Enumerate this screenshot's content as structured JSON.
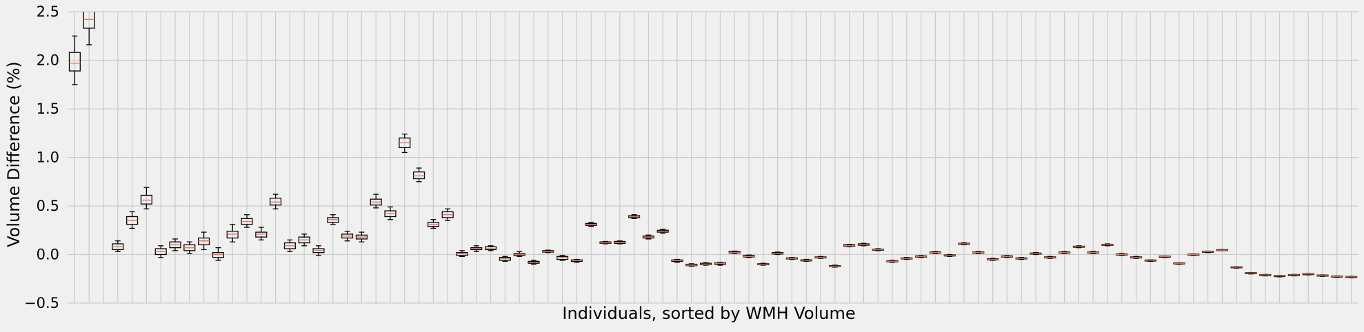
{
  "chart_data": {
    "type": "boxplot",
    "title": "",
    "xlabel": "Individuals, sorted by WMH Volume",
    "ylabel": "Volume Difference (%)",
    "ylim": [
      -0.5,
      2.5
    ],
    "yticks": [
      -0.5,
      0.0,
      0.5,
      1.0,
      1.5,
      2.0,
      2.5
    ],
    "ytick_labels": [
      "−0.5",
      "0.0",
      "0.5",
      "1.0",
      "1.5",
      "2.0",
      "2.5"
    ],
    "xtick_labels_shown": false,
    "grid": true,
    "median_color": "#e8735a",
    "box_color": "#000000",
    "grid_color": "#cbcbcb",
    "background_color": "#f0f0f0",
    "n_individuals": 90,
    "boxes": [
      {
        "individual": 1,
        "whisker_low": 1.75,
        "q1": 1.89,
        "median": 1.97,
        "q3": 2.08,
        "whisker_high": 2.25
      },
      {
        "individual": 2,
        "whisker_low": 2.16,
        "q1": 2.33,
        "median": 2.42,
        "q3": 2.55,
        "whisker_high": 2.72
      },
      {
        "individual": 3,
        "whisker_low": null,
        "q1": null,
        "median": null,
        "q3": null,
        "whisker_high": null
      },
      {
        "individual": 4,
        "whisker_low": 0.03,
        "q1": 0.05,
        "median": 0.08,
        "q3": 0.11,
        "whisker_high": 0.14
      },
      {
        "individual": 5,
        "whisker_low": 0.27,
        "q1": 0.31,
        "median": 0.35,
        "q3": 0.39,
        "whisker_high": 0.44
      },
      {
        "individual": 6,
        "whisker_low": 0.47,
        "q1": 0.52,
        "median": 0.56,
        "q3": 0.61,
        "whisker_high": 0.69
      },
      {
        "individual": 7,
        "whisker_low": -0.03,
        "q1": 0.0,
        "median": 0.03,
        "q3": 0.06,
        "whisker_high": 0.09
      },
      {
        "individual": 8,
        "whisker_low": 0.04,
        "q1": 0.07,
        "median": 0.1,
        "q3": 0.13,
        "whisker_high": 0.16
      },
      {
        "individual": 9,
        "whisker_low": 0.01,
        "q1": 0.04,
        "median": 0.07,
        "q3": 0.1,
        "whisker_high": 0.13
      },
      {
        "individual": 10,
        "whisker_low": 0.05,
        "q1": 0.1,
        "median": 0.14,
        "q3": 0.17,
        "whisker_high": 0.23
      },
      {
        "individual": 11,
        "whisker_low": -0.06,
        "q1": -0.03,
        "median": 0.0,
        "q3": 0.02,
        "whisker_high": 0.07
      },
      {
        "individual": 12,
        "whisker_low": 0.13,
        "q1": 0.17,
        "median": 0.21,
        "q3": 0.24,
        "whisker_high": 0.31
      },
      {
        "individual": 13,
        "whisker_low": 0.28,
        "q1": 0.31,
        "median": 0.34,
        "q3": 0.37,
        "whisker_high": 0.41
      },
      {
        "individual": 14,
        "whisker_low": 0.15,
        "q1": 0.18,
        "median": 0.21,
        "q3": 0.23,
        "whisker_high": 0.28
      },
      {
        "individual": 15,
        "whisker_low": 0.47,
        "q1": 0.51,
        "median": 0.54,
        "q3": 0.58,
        "whisker_high": 0.62
      },
      {
        "individual": 16,
        "whisker_low": 0.03,
        "q1": 0.06,
        "median": 0.09,
        "q3": 0.12,
        "whisker_high": 0.15
      },
      {
        "individual": 17,
        "whisker_low": 0.09,
        "q1": 0.12,
        "median": 0.15,
        "q3": 0.18,
        "whisker_high": 0.21
      },
      {
        "individual": 18,
        "whisker_low": -0.01,
        "q1": 0.02,
        "median": 0.04,
        "q3": 0.06,
        "whisker_high": 0.09
      },
      {
        "individual": 19,
        "whisker_low": 0.31,
        "q1": 0.33,
        "median": 0.36,
        "q3": 0.38,
        "whisker_high": 0.41
      },
      {
        "individual": 20,
        "whisker_low": 0.14,
        "q1": 0.17,
        "median": 0.19,
        "q3": 0.21,
        "whisker_high": 0.24
      },
      {
        "individual": 21,
        "whisker_low": 0.13,
        "q1": 0.16,
        "median": 0.18,
        "q3": 0.2,
        "whisker_high": 0.23
      },
      {
        "individual": 22,
        "whisker_low": 0.48,
        "q1": 0.51,
        "median": 0.54,
        "q3": 0.57,
        "whisker_high": 0.62
      },
      {
        "individual": 23,
        "whisker_low": 0.36,
        "q1": 0.39,
        "median": 0.42,
        "q3": 0.45,
        "whisker_high": 0.49
      },
      {
        "individual": 24,
        "whisker_low": 1.05,
        "q1": 1.1,
        "median": 1.15,
        "q3": 1.2,
        "whisker_high": 1.24
      },
      {
        "individual": 25,
        "whisker_low": 0.75,
        "q1": 0.78,
        "median": 0.81,
        "q3": 0.85,
        "whisker_high": 0.89
      },
      {
        "individual": 26,
        "whisker_low": 0.27,
        "q1": 0.29,
        "median": 0.31,
        "q3": 0.33,
        "whisker_high": 0.36
      },
      {
        "individual": 27,
        "whisker_low": 0.35,
        "q1": 0.38,
        "median": 0.41,
        "q3": 0.44,
        "whisker_high": 0.47
      },
      {
        "individual": 28,
        "whisker_low": -0.02,
        "q1": -0.01,
        "median": 0.01,
        "q3": 0.02,
        "whisker_high": 0.04
      },
      {
        "individual": 29,
        "whisker_low": 0.03,
        "q1": 0.05,
        "median": 0.06,
        "q3": 0.07,
        "whisker_high": 0.09
      },
      {
        "individual": 30,
        "whisker_low": 0.04,
        "q1": 0.05,
        "median": 0.06,
        "q3": 0.08,
        "whisker_high": 0.09
      },
      {
        "individual": 31,
        "whisker_low": -0.07,
        "q1": -0.06,
        "median": -0.04,
        "q3": -0.03,
        "whisker_high": -0.02
      },
      {
        "individual": 32,
        "whisker_low": -0.02,
        "q1": -0.01,
        "median": 0.0,
        "q3": 0.01,
        "whisker_high": 0.03
      },
      {
        "individual": 33,
        "whisker_low": -0.1,
        "q1": -0.09,
        "median": -0.08,
        "q3": -0.07,
        "whisker_high": -0.06
      },
      {
        "individual": 34,
        "whisker_low": 0.02,
        "q1": 0.025,
        "median": 0.03,
        "q3": 0.04,
        "whisker_high": 0.045
      },
      {
        "individual": 35,
        "whisker_low": -0.06,
        "q1": -0.05,
        "median": -0.03,
        "q3": -0.02,
        "whisker_high": -0.01
      },
      {
        "individual": 36,
        "whisker_low": -0.08,
        "q1": -0.07,
        "median": -0.06,
        "q3": -0.055,
        "whisker_high": -0.05
      },
      {
        "individual": 37,
        "whisker_low": 0.29,
        "q1": 0.3,
        "median": 0.31,
        "q3": 0.32,
        "whisker_high": 0.33
      },
      {
        "individual": 38,
        "whisker_low": 0.11,
        "q1": 0.115,
        "median": 0.12,
        "q3": 0.13,
        "whisker_high": 0.135
      },
      {
        "individual": 39,
        "whisker_low": 0.11,
        "q1": 0.115,
        "median": 0.125,
        "q3": 0.135,
        "whisker_high": 0.14
      },
      {
        "individual": 40,
        "whisker_low": 0.37,
        "q1": 0.38,
        "median": 0.39,
        "q3": 0.4,
        "whisker_high": 0.41
      },
      {
        "individual": 41,
        "whisker_low": 0.16,
        "q1": 0.17,
        "median": 0.18,
        "q3": 0.19,
        "whisker_high": 0.2
      },
      {
        "individual": 42,
        "whisker_low": 0.22,
        "q1": 0.23,
        "median": 0.24,
        "q3": 0.25,
        "whisker_high": 0.26
      },
      {
        "individual": 43,
        "whisker_low": -0.08,
        "q1": -0.07,
        "median": -0.06,
        "q3": -0.055,
        "whisker_high": -0.05
      },
      {
        "individual": 44,
        "whisker_low": -0.12,
        "q1": -0.115,
        "median": -0.11,
        "q3": -0.1,
        "whisker_high": -0.095
      },
      {
        "individual": 45,
        "whisker_low": -0.11,
        "q1": -0.105,
        "median": -0.1,
        "q3": -0.09,
        "whisker_high": -0.085
      },
      {
        "individual": 46,
        "whisker_low": -0.11,
        "q1": -0.1,
        "median": -0.09,
        "q3": -0.085,
        "whisker_high": -0.08
      },
      {
        "individual": 47,
        "whisker_low": 0.01,
        "q1": 0.015,
        "median": 0.02,
        "q3": 0.03,
        "whisker_high": 0.035
      },
      {
        "individual": 48,
        "whisker_low": -0.03,
        "q1": -0.025,
        "median": -0.02,
        "q3": -0.01,
        "whisker_high": -0.005
      },
      {
        "individual": 49,
        "whisker_low": -0.11,
        "q1": -0.105,
        "median": -0.1,
        "q3": -0.095,
        "whisker_high": -0.09
      },
      {
        "individual": 50,
        "whisker_low": 0.0,
        "q1": 0.005,
        "median": 0.01,
        "q3": 0.02,
        "whisker_high": 0.025
      },
      {
        "individual": 51,
        "whisker_low": -0.05,
        "q1": -0.045,
        "median": -0.04,
        "q3": -0.035,
        "whisker_high": -0.03
      },
      {
        "individual": 52,
        "whisker_low": -0.07,
        "q1": -0.065,
        "median": -0.06,
        "q3": -0.055,
        "whisker_high": -0.05
      },
      {
        "individual": 53,
        "whisker_low": -0.04,
        "q1": -0.035,
        "median": -0.03,
        "q3": -0.025,
        "whisker_high": -0.02
      },
      {
        "individual": 54,
        "whisker_low": -0.13,
        "q1": -0.125,
        "median": -0.12,
        "q3": -0.115,
        "whisker_high": -0.11
      },
      {
        "individual": 55,
        "whisker_low": 0.08,
        "q1": 0.085,
        "median": 0.09,
        "q3": 0.1,
        "whisker_high": 0.105
      },
      {
        "individual": 56,
        "whisker_low": 0.09,
        "q1": 0.095,
        "median": 0.1,
        "q3": 0.11,
        "whisker_high": 0.115
      },
      {
        "individual": 57,
        "whisker_low": 0.04,
        "q1": 0.045,
        "median": 0.05,
        "q3": 0.055,
        "whisker_high": 0.06
      },
      {
        "individual": 58,
        "whisker_low": -0.08,
        "q1": -0.075,
        "median": -0.07,
        "q3": -0.065,
        "whisker_high": -0.06
      },
      {
        "individual": 59,
        "whisker_low": -0.05,
        "q1": -0.045,
        "median": -0.04,
        "q3": -0.035,
        "whisker_high": -0.03
      },
      {
        "individual": 60,
        "whisker_low": -0.03,
        "q1": -0.025,
        "median": -0.02,
        "q3": -0.015,
        "whisker_high": -0.01
      },
      {
        "individual": 61,
        "whisker_low": 0.01,
        "q1": 0.015,
        "median": 0.02,
        "q3": 0.025,
        "whisker_high": 0.03
      },
      {
        "individual": 62,
        "whisker_low": -0.02,
        "q1": -0.015,
        "median": -0.01,
        "q3": -0.005,
        "whisker_high": 0.0
      },
      {
        "individual": 63,
        "whisker_low": 0.1,
        "q1": 0.105,
        "median": 0.11,
        "q3": 0.115,
        "whisker_high": 0.12
      },
      {
        "individual": 64,
        "whisker_low": 0.01,
        "q1": 0.015,
        "median": 0.02,
        "q3": 0.025,
        "whisker_high": 0.03
      },
      {
        "individual": 65,
        "whisker_low": -0.06,
        "q1": -0.055,
        "median": -0.05,
        "q3": -0.045,
        "whisker_high": -0.04
      },
      {
        "individual": 66,
        "whisker_low": -0.03,
        "q1": -0.025,
        "median": -0.02,
        "q3": -0.015,
        "whisker_high": -0.01
      },
      {
        "individual": 67,
        "whisker_low": -0.05,
        "q1": -0.045,
        "median": -0.04,
        "q3": -0.035,
        "whisker_high": -0.03
      },
      {
        "individual": 68,
        "whisker_low": 0.0,
        "q1": 0.005,
        "median": 0.01,
        "q3": 0.015,
        "whisker_high": 0.02
      },
      {
        "individual": 69,
        "whisker_low": -0.04,
        "q1": -0.035,
        "median": -0.03,
        "q3": -0.025,
        "whisker_high": -0.02
      },
      {
        "individual": 70,
        "whisker_low": 0.01,
        "q1": 0.015,
        "median": 0.02,
        "q3": 0.025,
        "whisker_high": 0.03
      },
      {
        "individual": 71,
        "whisker_low": 0.07,
        "q1": 0.075,
        "median": 0.08,
        "q3": 0.085,
        "whisker_high": 0.09
      },
      {
        "individual": 72,
        "whisker_low": 0.01,
        "q1": 0.015,
        "median": 0.02,
        "q3": 0.025,
        "whisker_high": 0.03
      },
      {
        "individual": 73,
        "whisker_low": 0.09,
        "q1": 0.095,
        "median": 0.1,
        "q3": 0.105,
        "whisker_high": 0.11
      },
      {
        "individual": 74,
        "whisker_low": -0.01,
        "q1": -0.005,
        "median": 0.0,
        "q3": 0.005,
        "whisker_high": 0.01
      },
      {
        "individual": 75,
        "whisker_low": -0.04,
        "q1": -0.035,
        "median": -0.03,
        "q3": -0.025,
        "whisker_high": -0.02
      },
      {
        "individual": 76,
        "whisker_low": -0.07,
        "q1": -0.065,
        "median": -0.06,
        "q3": -0.058,
        "whisker_high": -0.055
      },
      {
        "individual": 77,
        "whisker_low": -0.03,
        "q1": -0.025,
        "median": -0.02,
        "q3": -0.018,
        "whisker_high": -0.015
      },
      {
        "individual": 78,
        "whisker_low": -0.1,
        "q1": -0.095,
        "median": -0.09,
        "q3": -0.088,
        "whisker_high": -0.085
      },
      {
        "individual": 79,
        "whisker_low": -0.01,
        "q1": -0.005,
        "median": 0.0,
        "q3": 0.003,
        "whisker_high": 0.005
      },
      {
        "individual": 80,
        "whisker_low": 0.02,
        "q1": 0.025,
        "median": 0.03,
        "q3": 0.033,
        "whisker_high": 0.035
      },
      {
        "individual": 81,
        "whisker_low": 0.04,
        "q1": 0.042,
        "median": 0.045,
        "q3": 0.048,
        "whisker_high": 0.05
      },
      {
        "individual": 82,
        "whisker_low": -0.14,
        "q1": -0.135,
        "median": -0.13,
        "q3": -0.128,
        "whisker_high": -0.125
      },
      {
        "individual": 83,
        "whisker_low": -0.2,
        "q1": -0.195,
        "median": -0.19,
        "q3": -0.188,
        "whisker_high": -0.185
      },
      {
        "individual": 84,
        "whisker_low": -0.22,
        "q1": -0.215,
        "median": -0.21,
        "q3": -0.208,
        "whisker_high": -0.205
      },
      {
        "individual": 85,
        "whisker_low": -0.23,
        "q1": -0.225,
        "median": -0.22,
        "q3": -0.218,
        "whisker_high": -0.215
      },
      {
        "individual": 86,
        "whisker_low": -0.22,
        "q1": -0.215,
        "median": -0.21,
        "q3": -0.208,
        "whisker_high": -0.205
      },
      {
        "individual": 87,
        "whisker_low": -0.21,
        "q1": -0.205,
        "median": -0.2,
        "q3": -0.198,
        "whisker_high": -0.195
      },
      {
        "individual": 88,
        "whisker_low": -0.225,
        "q1": -0.22,
        "median": -0.215,
        "q3": -0.213,
        "whisker_high": -0.21
      },
      {
        "individual": 89,
        "whisker_low": -0.235,
        "q1": -0.23,
        "median": -0.225,
        "q3": -0.223,
        "whisker_high": -0.22
      },
      {
        "individual": 90,
        "whisker_low": -0.24,
        "q1": -0.235,
        "median": -0.23,
        "q3": -0.228,
        "whisker_high": -0.225
      }
    ]
  }
}
